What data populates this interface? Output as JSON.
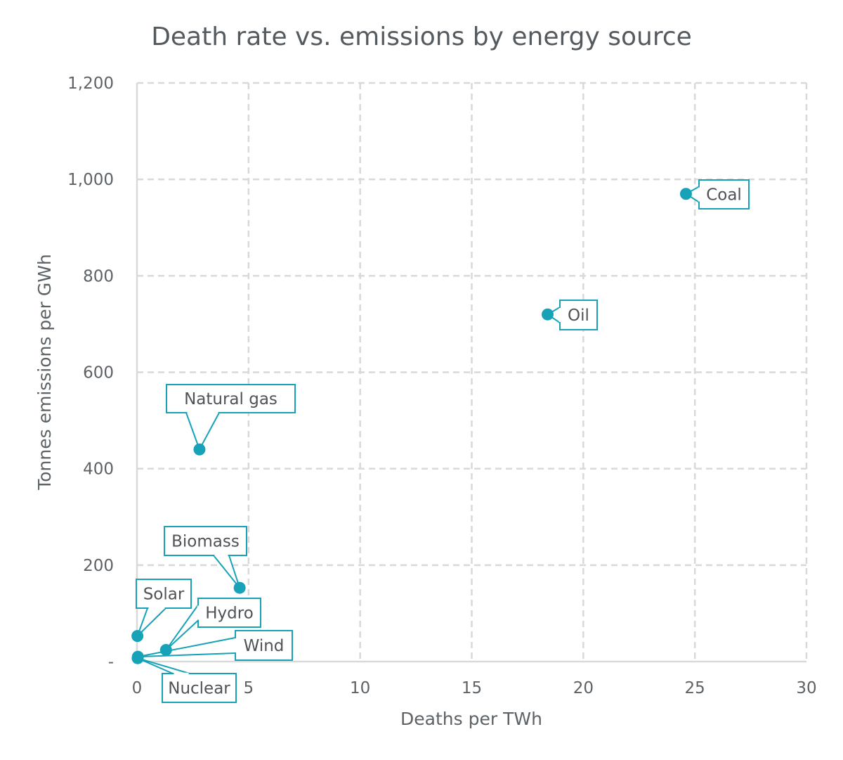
{
  "chart_data": {
    "type": "scatter",
    "title": "Death rate vs. emissions by energy source",
    "xlabel": "Deaths per TWh",
    "ylabel": "Tonnes emissions per GWh",
    "xlim": [
      0,
      30
    ],
    "ylim": [
      0,
      1200
    ],
    "x_ticks": [
      0,
      5,
      10,
      15,
      20,
      25,
      30
    ],
    "y_ticks": [
      0,
      200,
      400,
      600,
      800,
      1000,
      1200
    ],
    "x_tick_labels": [
      "0",
      "5",
      "10",
      "15",
      "20",
      "25",
      "30"
    ],
    "y_tick_labels": [
      "-",
      "200",
      "400",
      "600",
      "800",
      "1,000",
      "1,200"
    ],
    "grid": true,
    "legend": "none",
    "marker_color": "#17a2b8",
    "points": [
      {
        "label": "Coal",
        "x": 24.6,
        "y": 970
      },
      {
        "label": "Oil",
        "x": 18.4,
        "y": 720
      },
      {
        "label": "Natural gas",
        "x": 2.8,
        "y": 440
      },
      {
        "label": "Biomass",
        "x": 4.6,
        "y": 153
      },
      {
        "label": "Solar",
        "x": 0.02,
        "y": 53
      },
      {
        "label": "Hydro",
        "x": 1.3,
        "y": 24
      },
      {
        "label": "Wind",
        "x": 0.04,
        "y": 10
      },
      {
        "label": "Nuclear",
        "x": 0.03,
        "y": 7
      }
    ]
  }
}
